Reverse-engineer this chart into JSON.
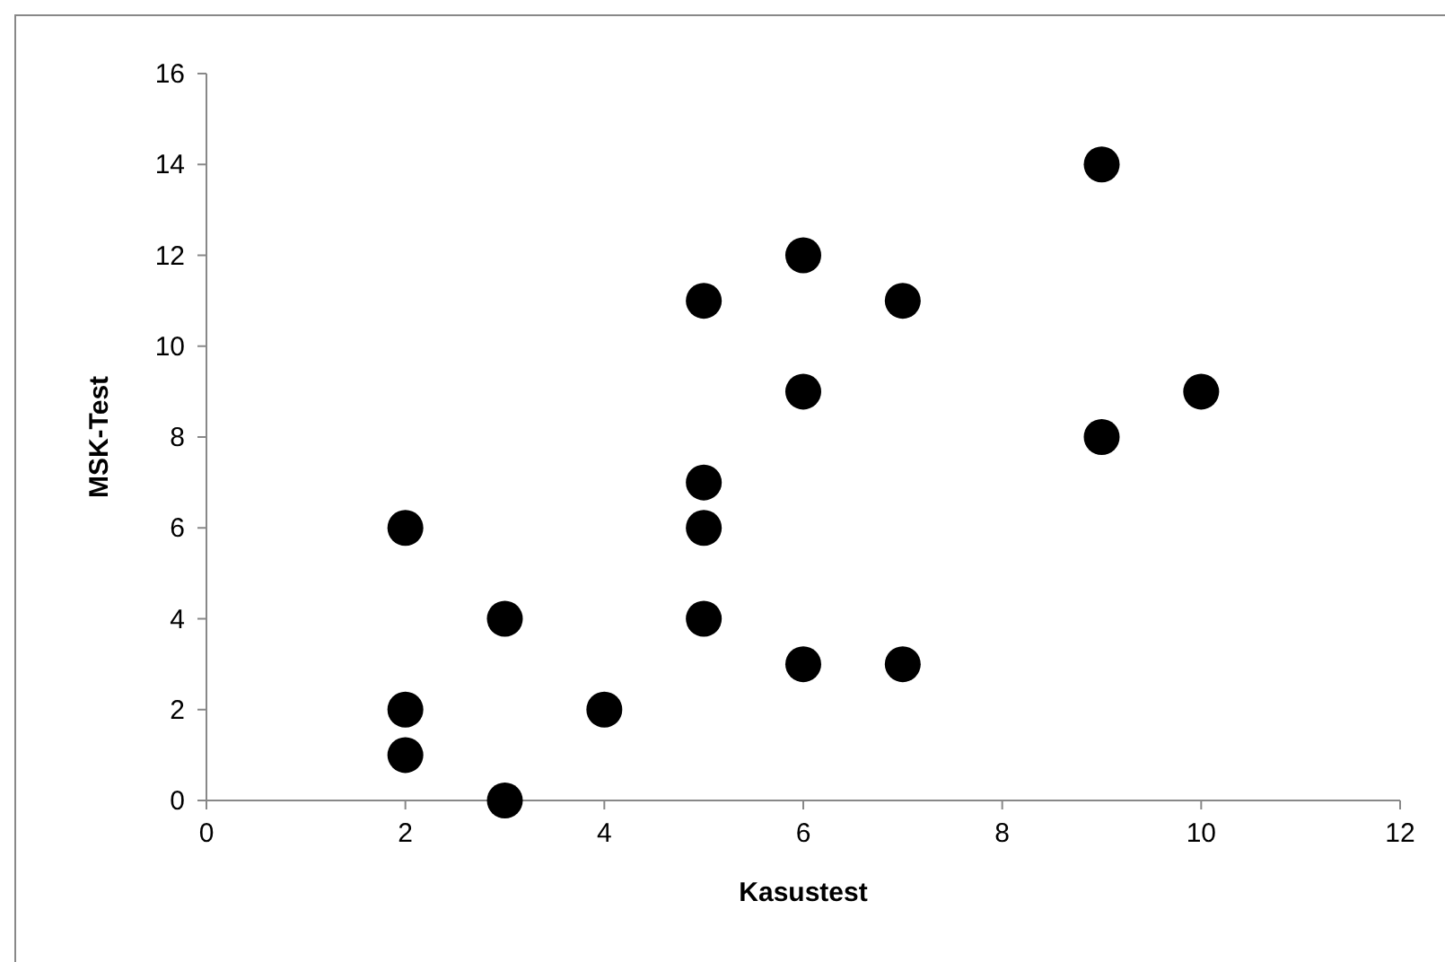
{
  "chart_data": {
    "type": "scatter",
    "xlabel": "Kasustest",
    "ylabel": "MSK-Test",
    "x": [
      2,
      2,
      2,
      3,
      3,
      4,
      5,
      5,
      5,
      5,
      6,
      6,
      6,
      7,
      7,
      9,
      9,
      10
    ],
    "values": [
      6,
      2,
      1,
      4,
      0,
      2,
      11,
      7,
      6,
      4,
      12,
      9,
      3,
      11,
      3,
      14,
      8,
      9
    ],
    "color": "#000000",
    "marker": "circle",
    "xlim": [
      0,
      12
    ],
    "xticks": [
      0,
      2,
      4,
      6,
      8,
      10,
      12
    ],
    "ylim": [
      0,
      16
    ],
    "yticks": [
      0,
      2,
      4,
      6,
      8,
      10,
      12,
      14,
      16
    ],
    "grid": false,
    "legend": false
  }
}
